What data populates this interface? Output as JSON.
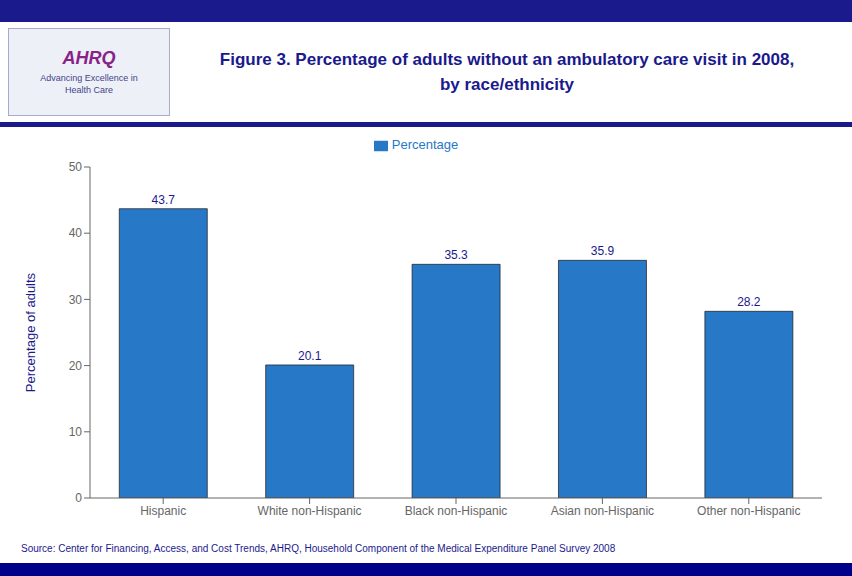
{
  "chart_data": {
    "type": "bar",
    "title": "Figure 3. Percentage of adults without an ambulatory care visit in 2008, by race/ethnicity",
    "ylabel": "Percentage of adults",
    "categories": [
      "Hispanic",
      "White non-Hispanic",
      "Black non-Hispanic",
      "Asian non-Hispanic",
      "Other non-Hispanic"
    ],
    "series": [
      {
        "name": "Percentage",
        "color": "#2878C8",
        "values": [
          43.7,
          20.1,
          35.3,
          35.9,
          28.2
        ]
      }
    ],
    "ylim": [
      0,
      50
    ],
    "yticks": [
      0,
      10,
      20,
      30,
      40,
      50
    ],
    "grid": false,
    "legend": "upper center",
    "data_labels": true,
    "annotations": [
      "AHRQ",
      "Advancing Excellence in Health Care",
      "Source: Center for Financing, Access, and Cost Trends, AHRQ, Household Component of the Medical Expenditure Panel Survey 2008"
    ]
  }
}
